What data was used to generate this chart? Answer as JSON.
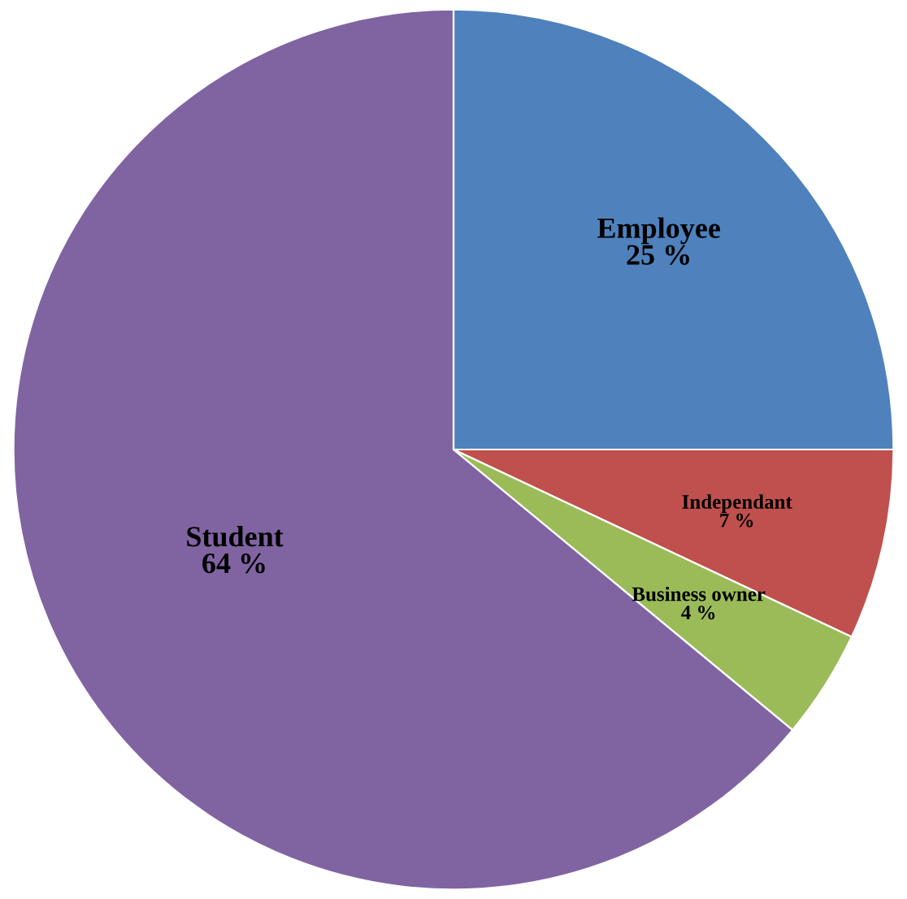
{
  "chart_data": {
    "type": "pie",
    "categories": [
      "Employee",
      "Independant",
      "Business owner",
      "Student"
    ],
    "values": [
      25,
      7,
      4,
      64
    ],
    "value_labels": [
      "25 %",
      "7 %",
      "4 %",
      "64 %"
    ],
    "colors": [
      "#4f81bd",
      "#c0504d",
      "#9bbb59",
      "#8064a2"
    ],
    "legend": false
  }
}
